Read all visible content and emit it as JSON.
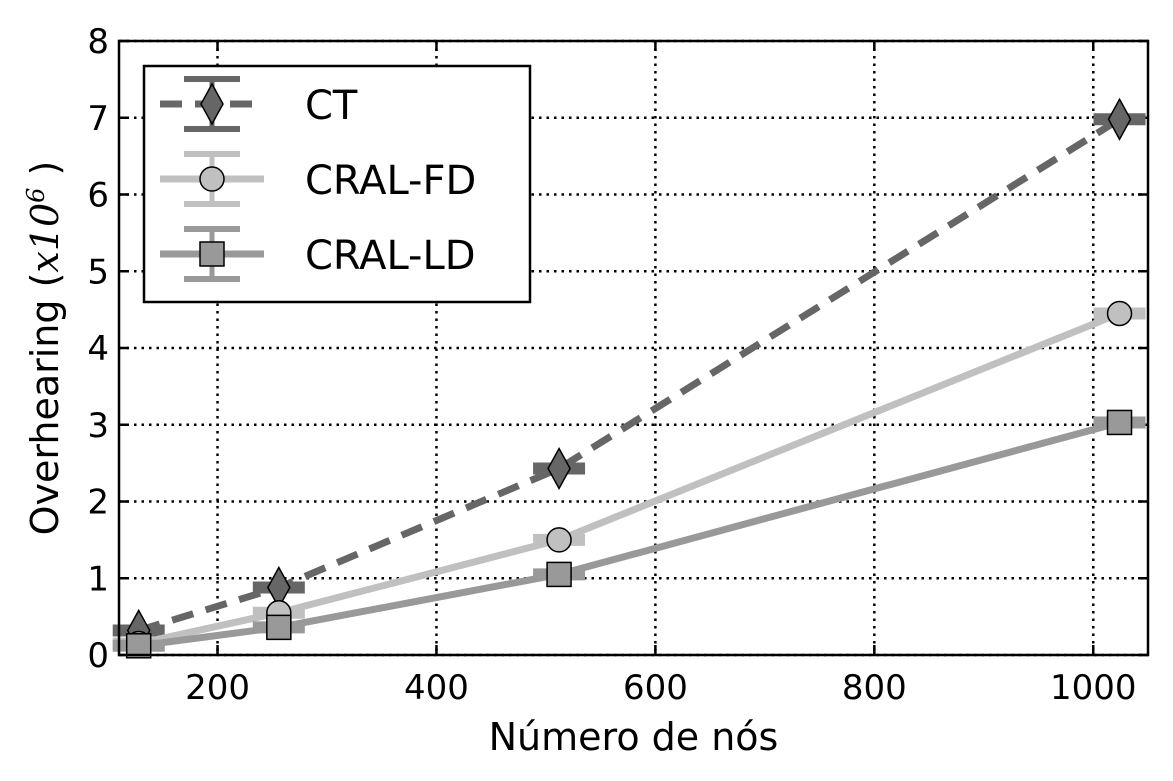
{
  "chart_data": {
    "type": "line",
    "xlabel": "Número de nós",
    "ylabel_text": "Overhearing (",
    "ylabel_math_base": "x10",
    "ylabel_math_exp": "6",
    "ylabel_close": " )",
    "xlim": [
      110,
      1050
    ],
    "ylim": [
      0,
      8
    ],
    "xticks": [
      200,
      400,
      600,
      800,
      1000
    ],
    "yticks": [
      0,
      1,
      2,
      3,
      4,
      5,
      6,
      7,
      8
    ],
    "grid": true,
    "legend_position": "top-left",
    "series": [
      {
        "name": "CT",
        "color": "#666666",
        "line_style": "dashed",
        "marker": "diamond",
        "x": [
          128,
          256,
          512,
          1024
        ],
        "y": [
          0.32,
          0.88,
          2.43,
          6.98
        ]
      },
      {
        "name": "CRAL-FD",
        "color": "#c0c0c0",
        "line_style": "solid",
        "marker": "circle",
        "x": [
          128,
          256,
          512,
          1024
        ],
        "y": [
          0.15,
          0.55,
          1.5,
          4.45
        ]
      },
      {
        "name": "CRAL-LD",
        "color": "#999999",
        "line_style": "solid",
        "marker": "square",
        "x": [
          128,
          256,
          512,
          1024
        ],
        "y": [
          0.12,
          0.36,
          1.05,
          3.03
        ]
      }
    ]
  }
}
